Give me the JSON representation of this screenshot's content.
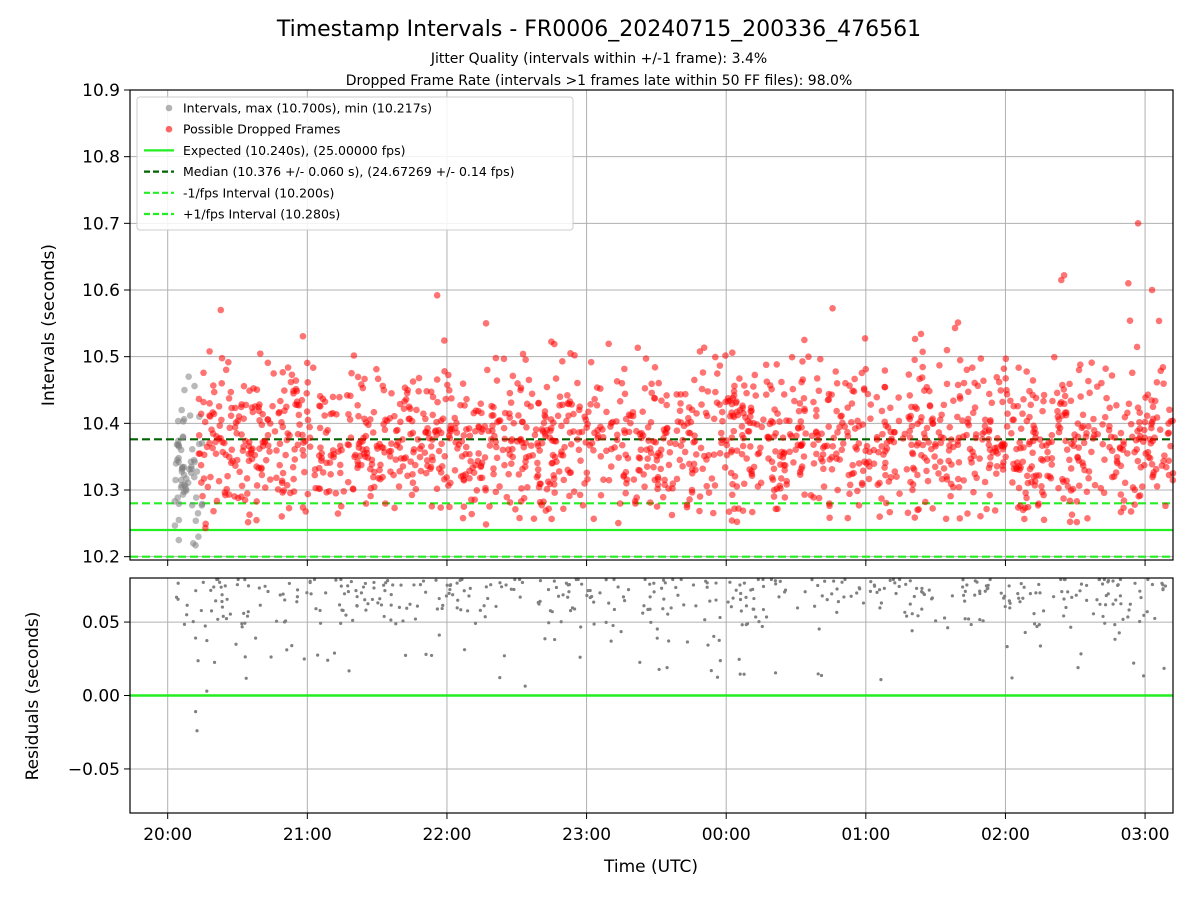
{
  "chart_data": {
    "type": "scatter",
    "title": "Timestamp Intervals - FR0006_20240715_200336_476561",
    "subtitle_lines": [
      "Jitter Quality (intervals within +/-1 frame): 3.4%",
      "Dropped Frame Rate (intervals >1 frames late within 50 FF files): 98.0%"
    ],
    "xlabel": "Time (UTC)",
    "x_ticks": [
      "20:00",
      "21:00",
      "22:00",
      "23:00",
      "00:00",
      "01:00",
      "02:00",
      "03:00"
    ],
    "x_range_hours": [
      -0.27,
      7.2
    ],
    "top_panel": {
      "ylabel": "Intervals (seconds)",
      "ylim": [
        10.195,
        10.9
      ],
      "y_ticks": [
        "10.2",
        "10.3",
        "10.4",
        "10.5",
        "10.6",
        "10.7",
        "10.8",
        "10.9"
      ],
      "grid": true,
      "legend_position": "top-left",
      "legend": [
        {
          "label": "Intervals, max (10.700s), min (10.217s)",
          "kind": "marker",
          "color": "#808080"
        },
        {
          "label": "Possible Dropped Frames",
          "kind": "marker",
          "color": "#ff0000"
        },
        {
          "label": "Expected (10.240s), (25.00000 fps)",
          "kind": "solid",
          "color": "#22ee22"
        },
        {
          "label": "Median (10.376 +/- 0.060 s), (24.67269 +/- 0.14 fps)",
          "kind": "dashed",
          "color": "#006400"
        },
        {
          "label": "-1/fps Interval (10.200s)",
          "kind": "dashed",
          "color": "#22ee22"
        },
        {
          "label": "+1/fps Interval (10.280s)",
          "kind": "dashed",
          "color": "#22ee22"
        }
      ],
      "reference_lines": {
        "expected": 10.24,
        "median": 10.376,
        "minus_1fps": 10.2,
        "plus_1fps": 10.28
      },
      "series": [
        {
          "name": "Intervals, max (10.700s), min (10.217s)",
          "color": "#808080",
          "x_range_hours": [
            0.05,
            0.25
          ],
          "y_center": 10.33,
          "y_spread": 0.06,
          "points_shown": [
            [
              0.08,
              10.255
            ],
            [
              0.1,
              10.42
            ],
            [
              0.12,
              10.45
            ],
            [
              0.15,
              10.47
            ],
            [
              0.2,
              10.217
            ],
            [
              0.22,
              10.23
            ]
          ]
        },
        {
          "name": "Possible Dropped Frames",
          "color": "#ff0000",
          "x_range_hours": [
            0.22,
            7.2
          ],
          "y_center": 10.376,
          "y_spread": 0.06,
          "y_max": 10.7,
          "y_min": 10.243,
          "points_shown": [
            [
              6.95,
              10.7
            ],
            [
              0.38,
              10.57
            ],
            [
              1.93,
              10.592
            ],
            [
              6.42,
              10.622
            ],
            [
              6.4,
              10.615
            ],
            [
              0.27,
              10.243
            ],
            [
              2.28,
              10.55
            ],
            [
              2.52,
              10.258
            ],
            [
              6.88,
              10.61
            ],
            [
              7.05,
              10.6
            ]
          ]
        }
      ]
    },
    "bottom_panel": {
      "ylabel": "Residuals (seconds)",
      "ylim": [
        -0.08,
        0.08
      ],
      "y_ticks": [
        "0.05",
        "0.00",
        "−0.05"
      ],
      "reference_line": {
        "y": 0.0,
        "color": "#22ee22"
      },
      "series": [
        {
          "name": "Residuals",
          "color": "#808080",
          "points_shown": [
            [
              0.2,
              -0.011
            ],
            [
              0.21,
              -0.024
            ],
            [
              0.28,
              0.003
            ],
            [
              6.52,
              0.019
            ],
            [
              1.85,
              0.028
            ]
          ]
        }
      ]
    }
  }
}
